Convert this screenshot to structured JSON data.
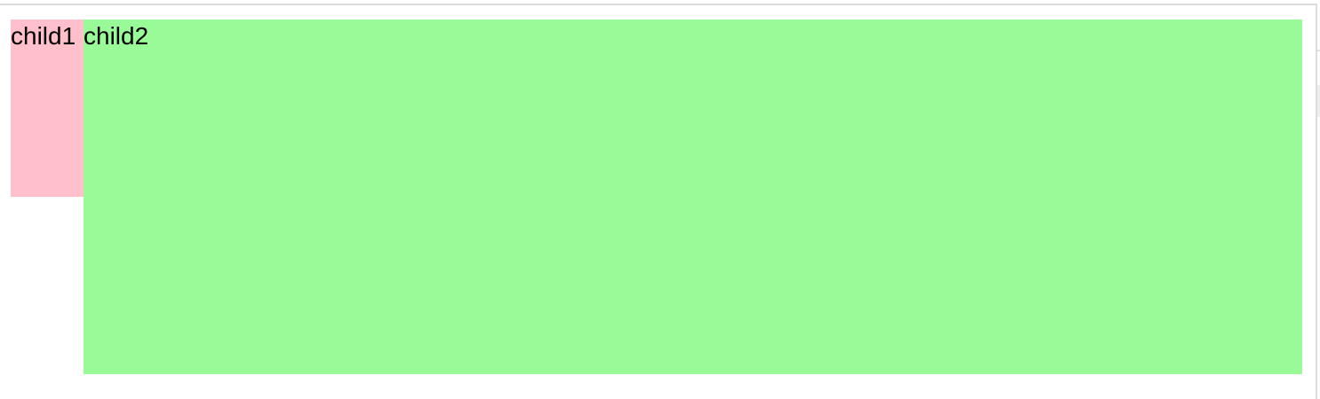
{
  "boxes": {
    "child1": {
      "label": "child1",
      "color": "#ffc0cb"
    },
    "child2": {
      "label": "child2",
      "color": "#98fb98"
    }
  }
}
